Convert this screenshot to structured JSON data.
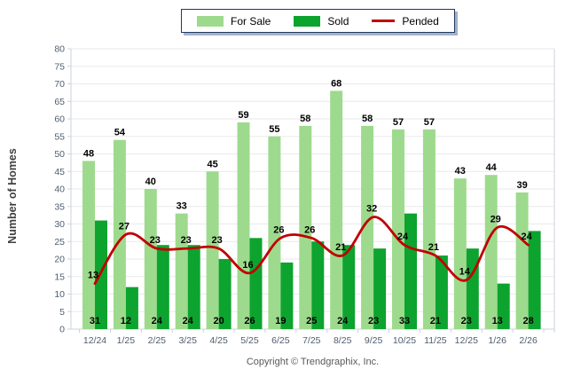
{
  "chart_data": {
    "type": "bar",
    "title": "",
    "xlabel": "",
    "ylabel": "Number of Homes",
    "ylim": [
      0,
      80
    ],
    "yticks": [
      0,
      5,
      10,
      15,
      20,
      25,
      30,
      35,
      40,
      45,
      50,
      55,
      60,
      65,
      70,
      75,
      80
    ],
    "grid": true,
    "legend_position": "top-center",
    "categories": [
      "12/24",
      "1/25",
      "2/25",
      "3/25",
      "4/25",
      "5/25",
      "6/25",
      "7/25",
      "8/25",
      "9/25",
      "10/25",
      "11/25",
      "12/25",
      "1/26",
      "2/26"
    ],
    "series": [
      {
        "name": "For Sale",
        "type": "bar",
        "color_key": "for_sale",
        "values": [
          48,
          54,
          40,
          33,
          45,
          59,
          55,
          58,
          68,
          58,
          57,
          57,
          43,
          44,
          39
        ]
      },
      {
        "name": "Sold",
        "type": "bar",
        "color_key": "sold",
        "values": [
          31,
          12,
          24,
          24,
          20,
          26,
          19,
          25,
          24,
          23,
          33,
          21,
          23,
          13,
          28
        ]
      },
      {
        "name": "Pended",
        "type": "line",
        "color_key": "pended",
        "values": [
          13,
          27,
          23,
          23,
          23,
          16,
          26,
          26,
          21,
          32,
          24,
          21,
          14,
          29,
          24
        ]
      }
    ]
  },
  "colors": {
    "for_sale": "#9EDA8D",
    "sold": "#0DA32F",
    "pended": "#C00000",
    "grid_line": "#EAEAEA",
    "axis_line": "#CBD3DE",
    "axis_text": "#4E5D6E",
    "value_label": "#000000",
    "legend_border": "#1F3864"
  },
  "footer": {
    "copyright": "Copyright © Trendgraphix, Inc."
  }
}
